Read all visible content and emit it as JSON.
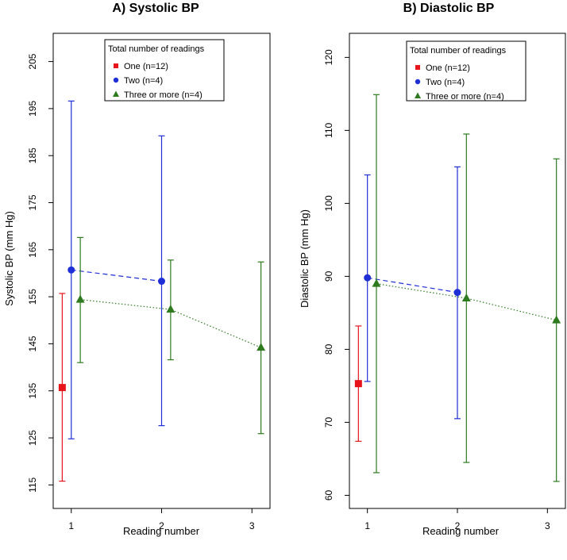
{
  "chart_data": [
    {
      "type": "line",
      "title": "A) Systolic BP",
      "xlabel": "Reading number",
      "ylabel": "Systolic BP (mm Hg)",
      "xlim": [
        0.8,
        3.2
      ],
      "ylim": [
        110,
        211
      ],
      "x_ticks": [
        1,
        2,
        3
      ],
      "y_ticks": [
        115,
        125,
        135,
        145,
        155,
        165,
        175,
        185,
        195,
        205
      ],
      "legend": {
        "title": "Total number of readings",
        "position": "top-center",
        "entries": [
          "One (n=12)",
          "Two (n=4)",
          "Three or more (n=4)"
        ]
      },
      "series": [
        {
          "name": "One (n=12)",
          "color": "#e8141c",
          "marker": "square",
          "line": "none",
          "offset": -0.1,
          "x": [
            1
          ],
          "y": [
            135.7
          ],
          "lower": [
            115.8
          ],
          "upper": [
            155.7
          ]
        },
        {
          "name": "Two (n=4)",
          "color": "#1f2fd6",
          "marker": "circle",
          "line": "dashed",
          "offset": 0,
          "x": [
            1,
            2
          ],
          "y": [
            160.7,
            158.3
          ],
          "lower": [
            124.8,
            127.6
          ],
          "upper": [
            196.6,
            189.2
          ]
        },
        {
          "name": "Three or more (n=4)",
          "color": "#2d7a1f",
          "marker": "triangle",
          "line": "dotted",
          "offset": 0.1,
          "x": [
            1,
            2,
            3
          ],
          "y": [
            154.4,
            152.3,
            144.2
          ],
          "lower": [
            141.0,
            141.6,
            125.9
          ],
          "upper": [
            167.6,
            162.8,
            162.4
          ]
        }
      ]
    },
    {
      "type": "line",
      "title": "B) Diastolic BP",
      "xlabel": "Reading number",
      "ylabel": "Diastolic BP (mm Hg)",
      "xlim": [
        0.8,
        3.2
      ],
      "ylim": [
        58.2,
        123.3
      ],
      "x_ticks": [
        1,
        2,
        3
      ],
      "y_ticks": [
        60,
        70,
        80,
        90,
        100,
        110,
        120
      ],
      "legend": {
        "title": "Total number of readings",
        "position": "top-center",
        "entries": [
          "One (n=12)",
          "Two (n=4)",
          "Three or more (n=4)"
        ]
      },
      "series": [
        {
          "name": "One (n=12)",
          "color": "#e8141c",
          "marker": "square",
          "line": "none",
          "offset": -0.1,
          "x": [
            1
          ],
          "y": [
            75.3
          ],
          "lower": [
            67.4
          ],
          "upper": [
            83.2
          ]
        },
        {
          "name": "Two (n=4)",
          "color": "#1f2fd6",
          "marker": "circle",
          "line": "dashed",
          "offset": 0,
          "x": [
            1,
            2
          ],
          "y": [
            89.8,
            87.8
          ],
          "lower": [
            75.6,
            70.5
          ],
          "upper": [
            103.9,
            105.0
          ]
        },
        {
          "name": "Three or more (n=4)",
          "color": "#2d7a1f",
          "marker": "triangle",
          "line": "dotted",
          "offset": 0.1,
          "x": [
            1,
            2,
            3
          ],
          "y": [
            89.0,
            87.0,
            84.0
          ],
          "lower": [
            63.1,
            64.5,
            61.9
          ],
          "upper": [
            114.9,
            109.5,
            106.1
          ]
        }
      ]
    }
  ]
}
